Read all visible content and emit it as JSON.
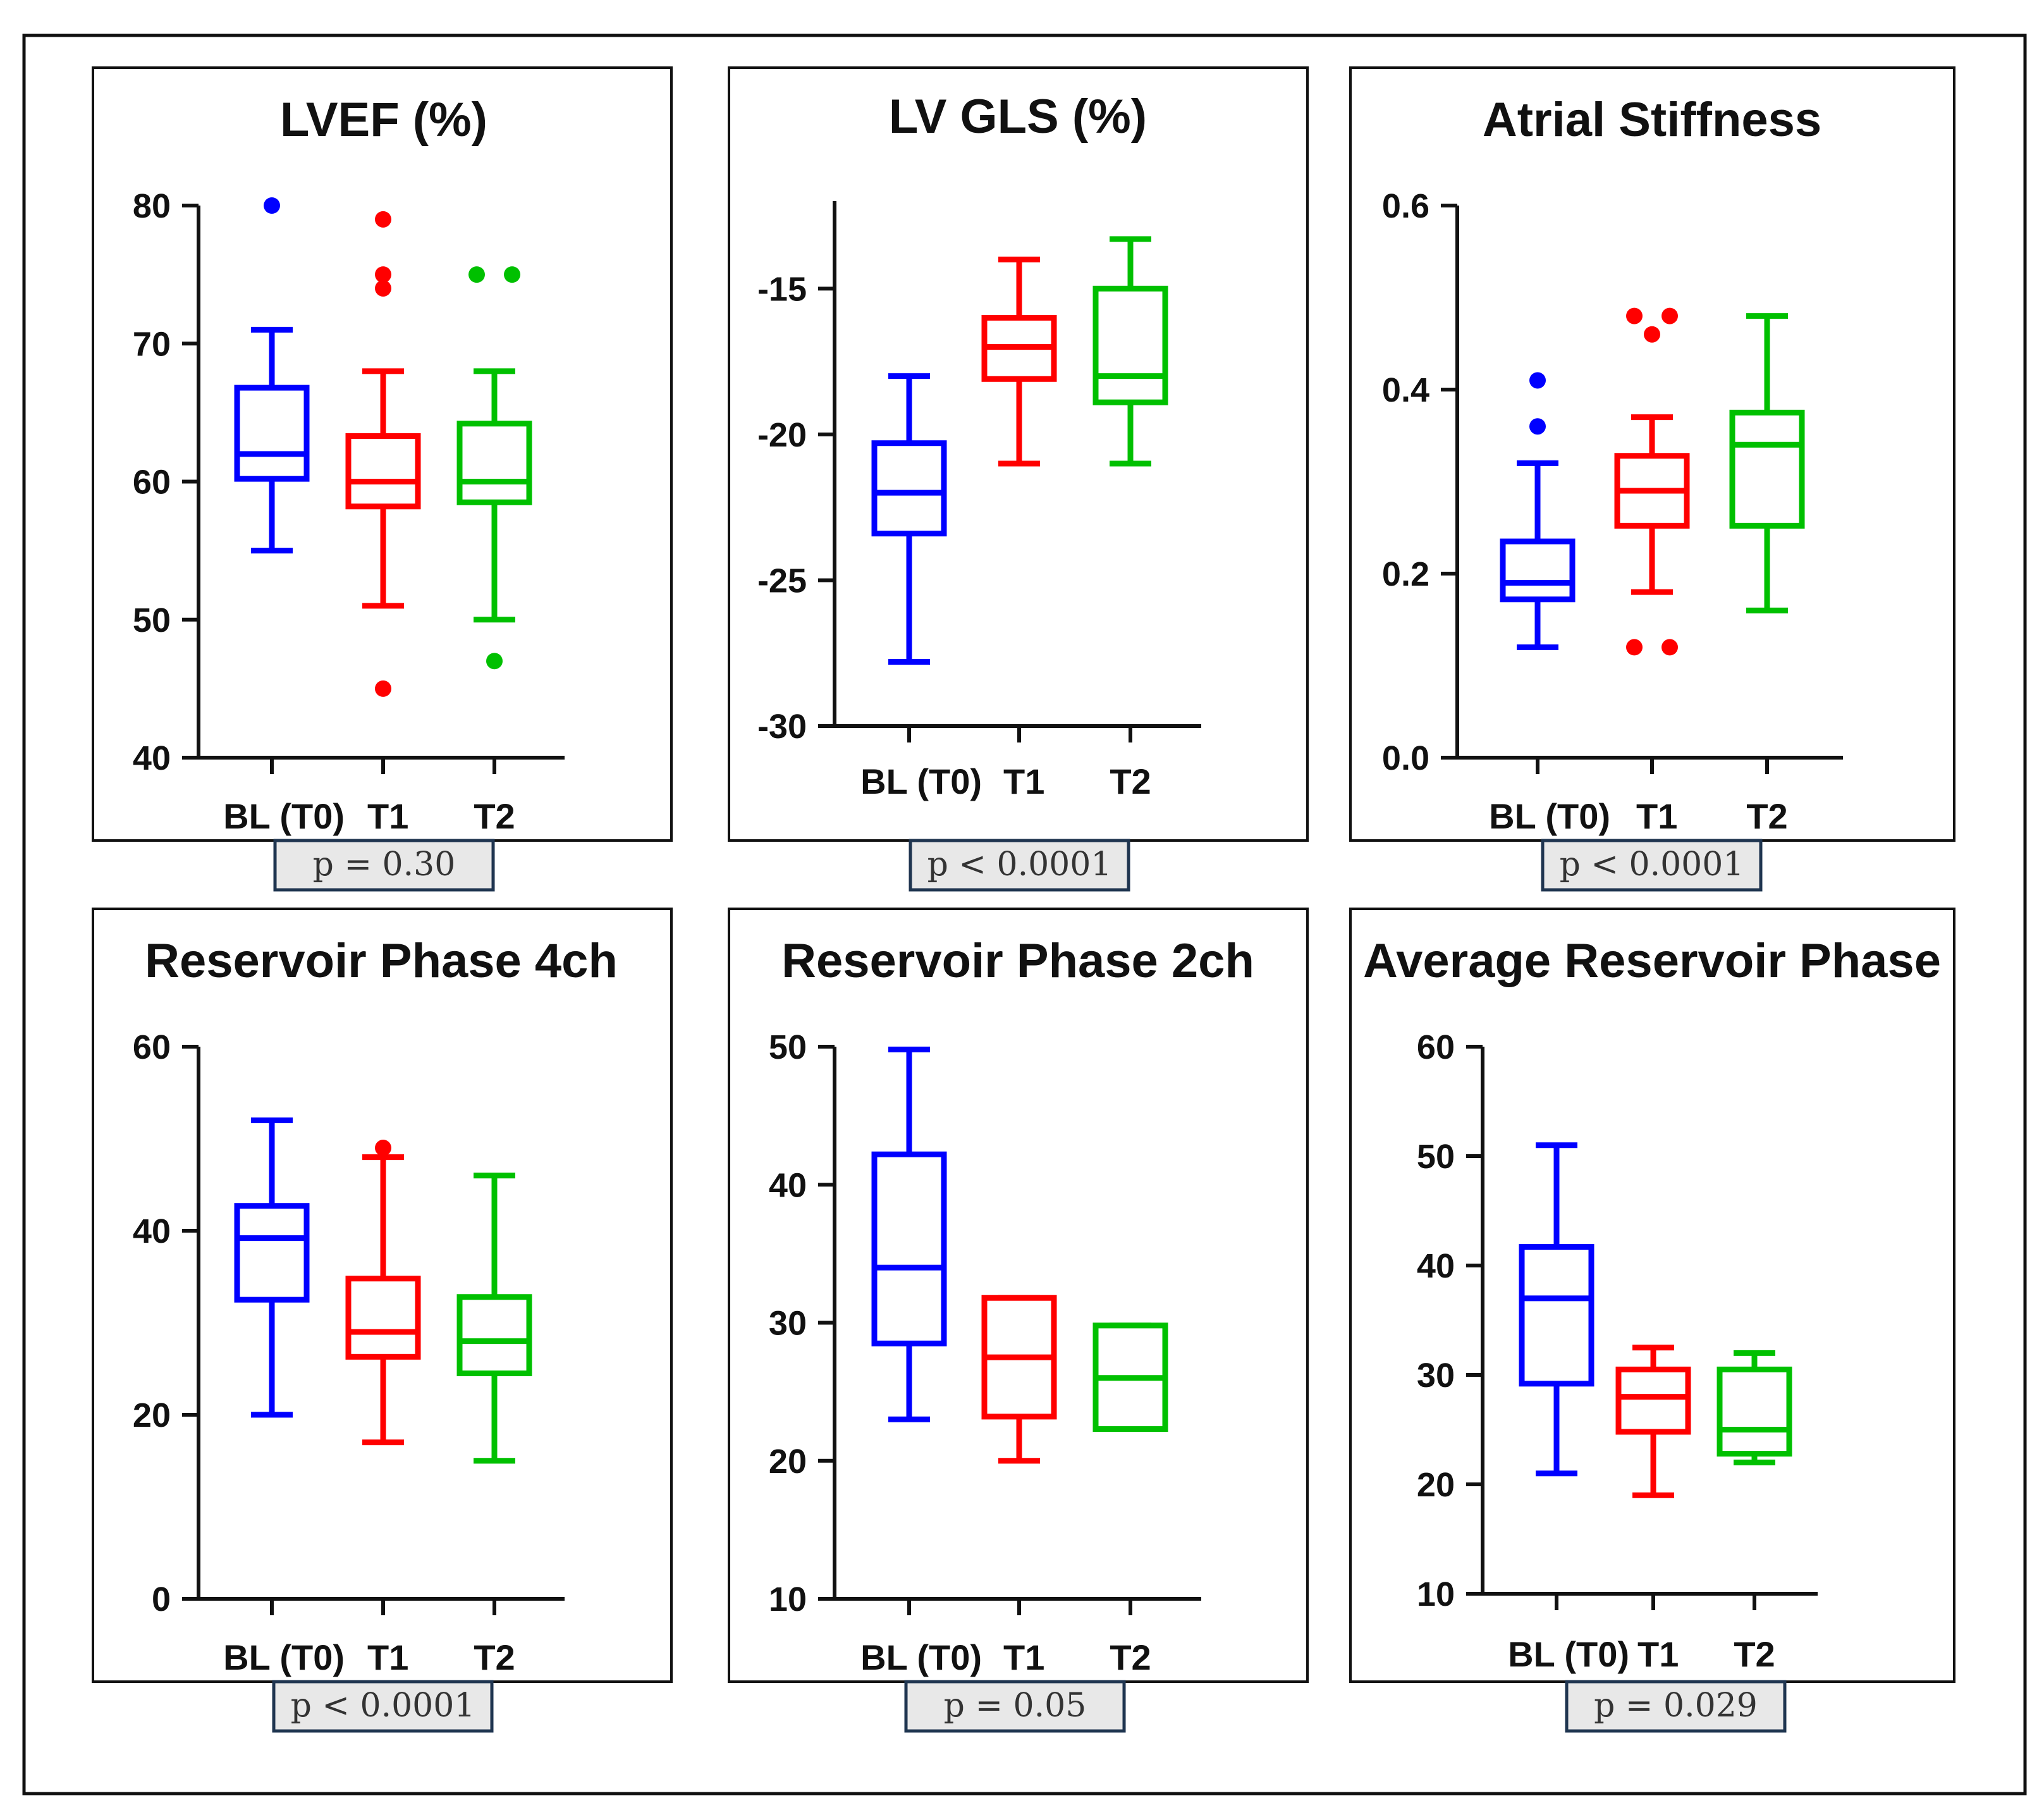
{
  "figure": {
    "border_color": "#111111",
    "pbox_fill": "#e8e8e8",
    "pbox_border": "#1f3550"
  },
  "chart_data": [
    {
      "type": "box",
      "title": "LVEF (%)",
      "categories": [
        "BL (T0)",
        "T1",
        "T2"
      ],
      "colors": [
        "#0000ff",
        "#ff0000",
        "#00c000"
      ],
      "ylim": [
        40,
        80
      ],
      "yticks": [
        40,
        50,
        60,
        70,
        80
      ],
      "ytick_labels": [
        "40",
        "50",
        "60",
        "70",
        "80"
      ],
      "series": [
        {
          "name": "BL (T0)",
          "min": 55,
          "q1": 60.2,
          "median": 62,
          "q3": 66.8,
          "max": 71,
          "outliers": [
            80
          ]
        },
        {
          "name": "T1",
          "min": 51,
          "q1": 58.2,
          "median": 60,
          "q3": 63.3,
          "max": 68,
          "outliers": [
            79,
            75,
            74,
            45
          ]
        },
        {
          "name": "T2",
          "min": 50,
          "q1": 58.5,
          "median": 60,
          "q3": 64.2,
          "max": 68,
          "outliers": [
            75,
            75,
            47
          ]
        }
      ],
      "p_value": "p = 0.30"
    },
    {
      "type": "box",
      "title": "LV GLS (%)",
      "categories": [
        "BL (T0)",
        "T1",
        "T2"
      ],
      "colors": [
        "#0000ff",
        "#ff0000",
        "#00c000"
      ],
      "ylim": [
        -30,
        -12
      ],
      "yticks": [
        -30,
        -25,
        -20,
        -15
      ],
      "ytick_labels": [
        "-30",
        "-25",
        "-20",
        "-15"
      ],
      "series": [
        {
          "name": "BL (T0)",
          "min": -27.8,
          "q1": -23.4,
          "median": -22,
          "q3": -20.3,
          "max": -18,
          "outliers": []
        },
        {
          "name": "T1",
          "min": -21,
          "q1": -18.1,
          "median": -17,
          "q3": -16,
          "max": -14,
          "outliers": []
        },
        {
          "name": "T2",
          "min": -21,
          "q1": -18.9,
          "median": -18,
          "q3": -15,
          "max": -13.3,
          "outliers": []
        }
      ],
      "p_value": "p < 0.0001"
    },
    {
      "type": "box",
      "title": "Atrial Stiffness",
      "categories": [
        "BL (T0)",
        "T1",
        "T2"
      ],
      "colors": [
        "#0000ff",
        "#ff0000",
        "#00c000"
      ],
      "ylim": [
        0,
        0.6
      ],
      "yticks": [
        0,
        0.2,
        0.4,
        0.6
      ],
      "ytick_labels": [
        "0.0",
        "0.2",
        "0.4",
        "0.6"
      ],
      "series": [
        {
          "name": "BL (T0)",
          "min": 0.12,
          "q1": 0.172,
          "median": 0.19,
          "q3": 0.235,
          "max": 0.32,
          "outliers": [
            0.41,
            0.36
          ]
        },
        {
          "name": "T1",
          "min": 0.18,
          "q1": 0.252,
          "median": 0.29,
          "q3": 0.328,
          "max": 0.37,
          "outliers": [
            0.48,
            0.48,
            0.46,
            0.12,
            0.12
          ]
        },
        {
          "name": "T2",
          "min": 0.16,
          "q1": 0.252,
          "median": 0.34,
          "q3": 0.375,
          "max": 0.48,
          "outliers": []
        }
      ],
      "p_value": "p < 0.0001"
    },
    {
      "type": "box",
      "title": "Reservoir Phase 4ch",
      "categories": [
        "BL (T0)",
        "T1",
        "T2"
      ],
      "colors": [
        "#0000ff",
        "#ff0000",
        "#00c000"
      ],
      "ylim": [
        0,
        60
      ],
      "yticks": [
        0,
        20,
        40,
        60
      ],
      "ytick_labels": [
        "0",
        "20",
        "40",
        "60"
      ],
      "series": [
        {
          "name": "BL (T0)",
          "min": 20,
          "q1": 32.5,
          "median": 39.2,
          "q3": 42.7,
          "max": 52,
          "outliers": []
        },
        {
          "name": "T1",
          "min": 17,
          "q1": 26.3,
          "median": 29,
          "q3": 34.8,
          "max": 48,
          "outliers": [
            49
          ]
        },
        {
          "name": "T2",
          "min": 15,
          "q1": 24.5,
          "median": 28,
          "q3": 32.8,
          "max": 46,
          "outliers": []
        }
      ],
      "p_value": "p < 0.0001"
    },
    {
      "type": "box",
      "title": "Reservoir Phase 2ch",
      "categories": [
        "BL (T0)",
        "T1",
        "T2"
      ],
      "colors": [
        "#0000ff",
        "#ff0000",
        "#00c000"
      ],
      "ylim": [
        10,
        50
      ],
      "yticks": [
        10,
        20,
        30,
        40,
        50
      ],
      "ytick_labels": [
        "10",
        "20",
        "30",
        "40",
        "50"
      ],
      "series": [
        {
          "name": "BL (T0)",
          "min": 23,
          "q1": 28.5,
          "median": 34,
          "q3": 42.2,
          "max": 49.8,
          "outliers": []
        },
        {
          "name": "T1",
          "min": 20,
          "q1": 23.2,
          "median": 27.5,
          "q3": 31.8,
          "max": 31.8,
          "outliers": []
        },
        {
          "name": "T2",
          "min": 22.3,
          "q1": 22.3,
          "median": 26,
          "q3": 29.8,
          "max": 29.8,
          "outliers": []
        }
      ],
      "p_value": "p = 0.05"
    },
    {
      "type": "box",
      "title": "Average Reservoir Phase",
      "categories": [
        "BL (T0)",
        "T1",
        "T2"
      ],
      "colors": [
        "#0000ff",
        "#ff0000",
        "#00c000"
      ],
      "ylim": [
        10,
        60
      ],
      "yticks": [
        10,
        20,
        30,
        40,
        50,
        60
      ],
      "ytick_labels": [
        "10",
        "20",
        "30",
        "40",
        "50",
        "60"
      ],
      "series": [
        {
          "name": "BL (T0)",
          "min": 21,
          "q1": 29.2,
          "median": 37,
          "q3": 41.7,
          "max": 51,
          "outliers": []
        },
        {
          "name": "T1",
          "min": 19,
          "q1": 24.8,
          "median": 28,
          "q3": 30.5,
          "max": 32.5,
          "outliers": []
        },
        {
          "name": "T2",
          "min": 22,
          "q1": 22.8,
          "median": 25,
          "q3": 30.5,
          "max": 32,
          "outliers": []
        }
      ],
      "p_value": "p = 0.029"
    }
  ]
}
